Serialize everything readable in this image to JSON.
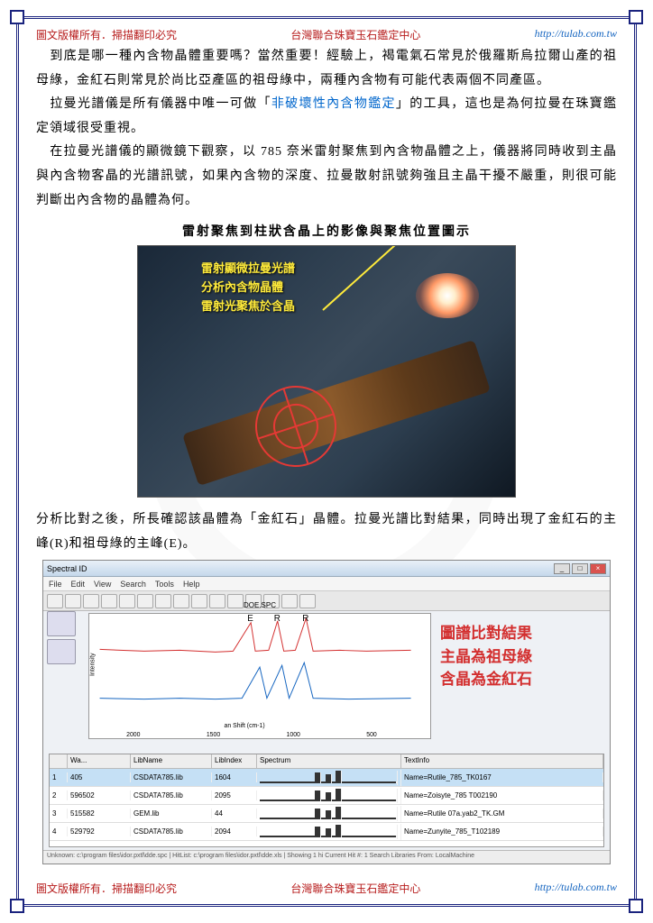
{
  "header": {
    "left": "圖文版權所有．掃描翻印必究",
    "mid": "台灣聯合珠寶玉石鑑定中心",
    "url": "http://tulab.com.tw"
  },
  "para1": "　到底是哪一種內含物晶體重要嗎？當然重要！經驗上，褐電氣石常見於俄羅斯烏拉爾山產的祖母綠，金紅石則常見於尚比亞產區的祖母綠中，兩種內含物有可能代表兩個不同產區。",
  "para2_pre": "　拉曼光譜儀是所有儀器中唯一可做「",
  "para2_hl": "非破壞性內含物鑑定",
  "para2_post": "」的工具，這也是為何拉曼在珠寶鑑定領域很受重視。",
  "para3": "　在拉曼光譜儀的顯微鏡下觀察，以 785 奈米雷射聚焦到內含物晶體之上，儀器將同時收到主晶與內含物客晶的光譜訊號，如果內含物的深度、拉曼散射訊號夠強且主晶干擾不嚴重，則很可能判斷出內含物的晶體為何。",
  "caption1": "雷射聚焦到柱狀含晶上的影像與聚焦位置圖示",
  "fig1_label": {
    "l1": "雷射顯微拉曼光譜",
    "l2": "分析內含物晶體",
    "l3": "雷射光聚焦於含晶"
  },
  "para4": "分析比對之後，所長確認該晶體為「金紅石」晶體。拉曼光譜比對結果，同時出現了金紅石的主峰(R)和祖母綠的主峰(E)。",
  "software": {
    "title": "Spectral ID",
    "menu": [
      "File",
      "Edit",
      "View",
      "Search",
      "Tools",
      "Help"
    ],
    "chart_title": "DOE.SPC",
    "peaks": [
      "E",
      "R",
      "R"
    ],
    "result": {
      "l1": "圖譜比對結果",
      "l2": "主晶為祖母綠",
      "l3": "含晶為金紅石"
    },
    "xlabels": [
      "2000",
      "1500",
      "1000",
      "500"
    ],
    "xaxis": "an Shift (cm-1)",
    "columns": [
      "",
      "Wa...",
      "LibName",
      "LibIndex",
      "Spectrum",
      "TextInfo"
    ],
    "col_w": [
      "20px",
      "70px",
      "90px",
      "50px",
      "160px",
      "auto"
    ],
    "rows": [
      {
        "sel": true,
        "wa": "405",
        "lib": "CSDATA785.lib",
        "idx": "1604",
        "name": "Name=Rutile_785_TK0167"
      },
      {
        "wa": "596502",
        "lib": "CSDATA785.lib",
        "idx": "2095",
        "name": "Name=Zoisyte_785 T002190"
      },
      {
        "wa": "515582",
        "lib": "GEM.lib",
        "idx": "44",
        "name": "Name=Rutile 07a.yab2_TK.GM"
      },
      {
        "wa": "529792",
        "lib": "CSDATA785.lib",
        "idx": "2094",
        "name": "Name=Zunyite_785_T102189"
      }
    ],
    "status": "Unknown: c:\\program files\\idor.pxtl\\dde.spc | HitList: c:\\program files\\idor.pxtl\\dde.xls | Showing 1 hi   Current Hit #: 1   Search Libraries From: LocalMachine"
  },
  "colors": {
    "border": "#1a237e",
    "red": "#b71c1c",
    "blue": "#1565c0",
    "yellow": "#ffeb3b",
    "highlight": "#0066cc"
  }
}
